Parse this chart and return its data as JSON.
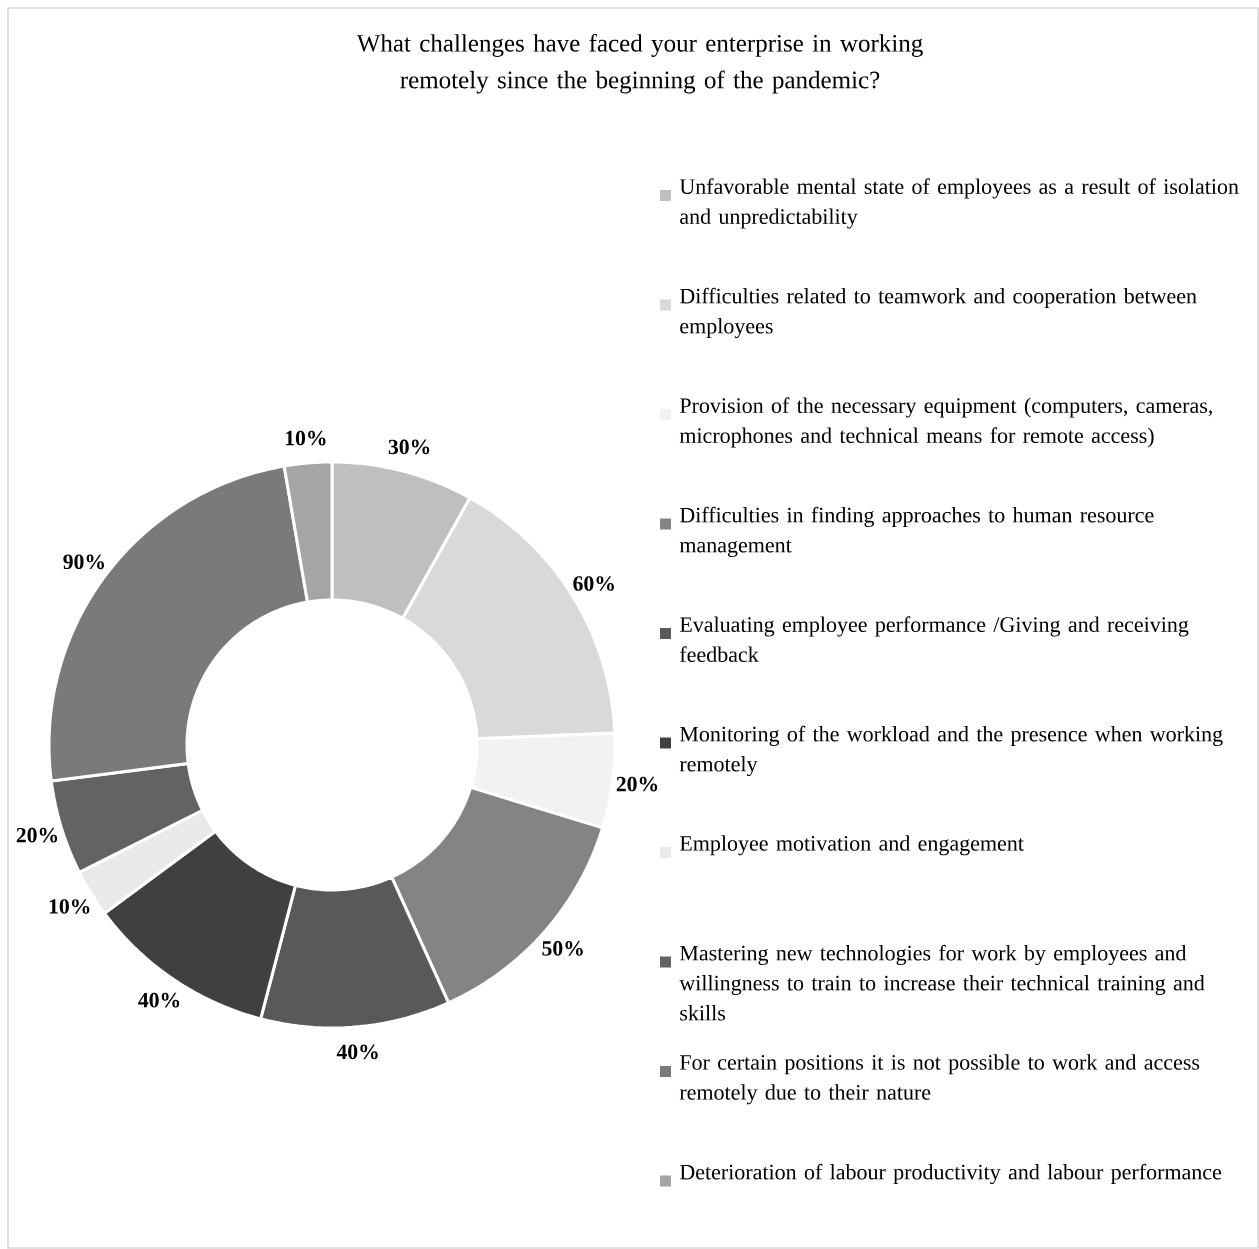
{
  "chart_data": {
    "type": "donut",
    "title": "What challenges have faced your enterprise in working remotely since the beginning of the pandemic?",
    "categories": [
      "Unfavorable mental state of employees as a result of isolation and unpredictability",
      "Difficulties related to teamwork and cooperation between employees",
      "Provision of the necessary equipment (computers, cameras, microphones and technical means for remote access)",
      "Difficulties in finding approaches to human resource management",
      "Evaluating employee performance /Giving and receiving feedback",
      "Monitoring of the workload and the presence when working remotely",
      "Employee motivation and engagement",
      "Mastering new technologies for work by employees and willingness to train to increase their technical training and skills",
      "For certain positions it is not possible to work and access remotely due to their nature",
      "Deterioration of labour productivity and labour performance"
    ],
    "values": [
      30,
      60,
      20,
      50,
      40,
      40,
      10,
      20,
      90,
      10
    ],
    "value_labels": [
      "30%",
      "60%",
      "20%",
      "50%",
      "40%",
      "40%",
      "10%",
      "20%",
      "90%",
      "10%"
    ],
    "colors": [
      "#bfbfbf",
      "#d9d9d9",
      "#f2f2f2",
      "#848484",
      "#595959",
      "#404040",
      "#e9e9e9",
      "#636363",
      "#7a7a7a",
      "#a5a5a5"
    ],
    "legend": "right"
  }
}
